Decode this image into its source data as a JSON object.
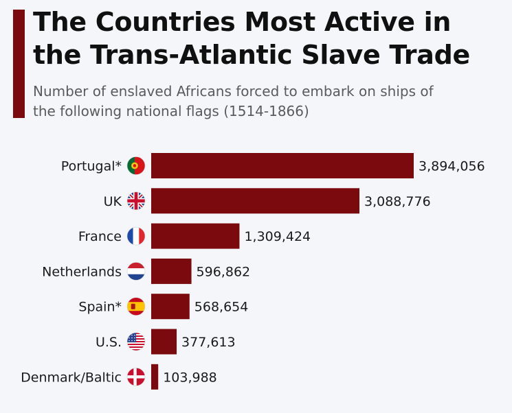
{
  "header": {
    "title": "The Countries Most Active in the Trans-Atlantic Slave Trade",
    "subtitle": "Number of enslaved Africans forced to embark on ships of the following national flags (1514-1866)"
  },
  "footnote": "",
  "colors": {
    "accent": "#7a0a0e",
    "bar": "#7a0a0e",
    "background": "#f4f6f9"
  },
  "chart_data": {
    "type": "bar",
    "orientation": "horizontal",
    "title": "The Countries Most Active in the Trans-Atlantic Slave Trade",
    "subtitle": "Number of enslaved Africans forced to embark on ships of the following national flags (1514-1866)",
    "categories": [
      "Portugal*",
      "UK",
      "France",
      "Netherlands",
      "Spain*",
      "U.S.",
      "Denmark/Baltic"
    ],
    "values": [
      3894056,
      3088776,
      1309424,
      596862,
      568654,
      377613,
      103988
    ],
    "value_labels": [
      "3,894,056",
      "3,088,776",
      "1,309,424",
      "596,862",
      "568,654",
      "377,613",
      "103,988"
    ],
    "flag_icons": [
      "portugal-flag-icon",
      "uk-flag-icon",
      "france-flag-icon",
      "netherlands-flag-icon",
      "spain-flag-icon",
      "us-flag-icon",
      "denmark-flag-icon"
    ],
    "xlabel": "",
    "ylabel": "",
    "xlim": [
      0,
      3894056
    ],
    "grid": false,
    "legend": "none"
  }
}
